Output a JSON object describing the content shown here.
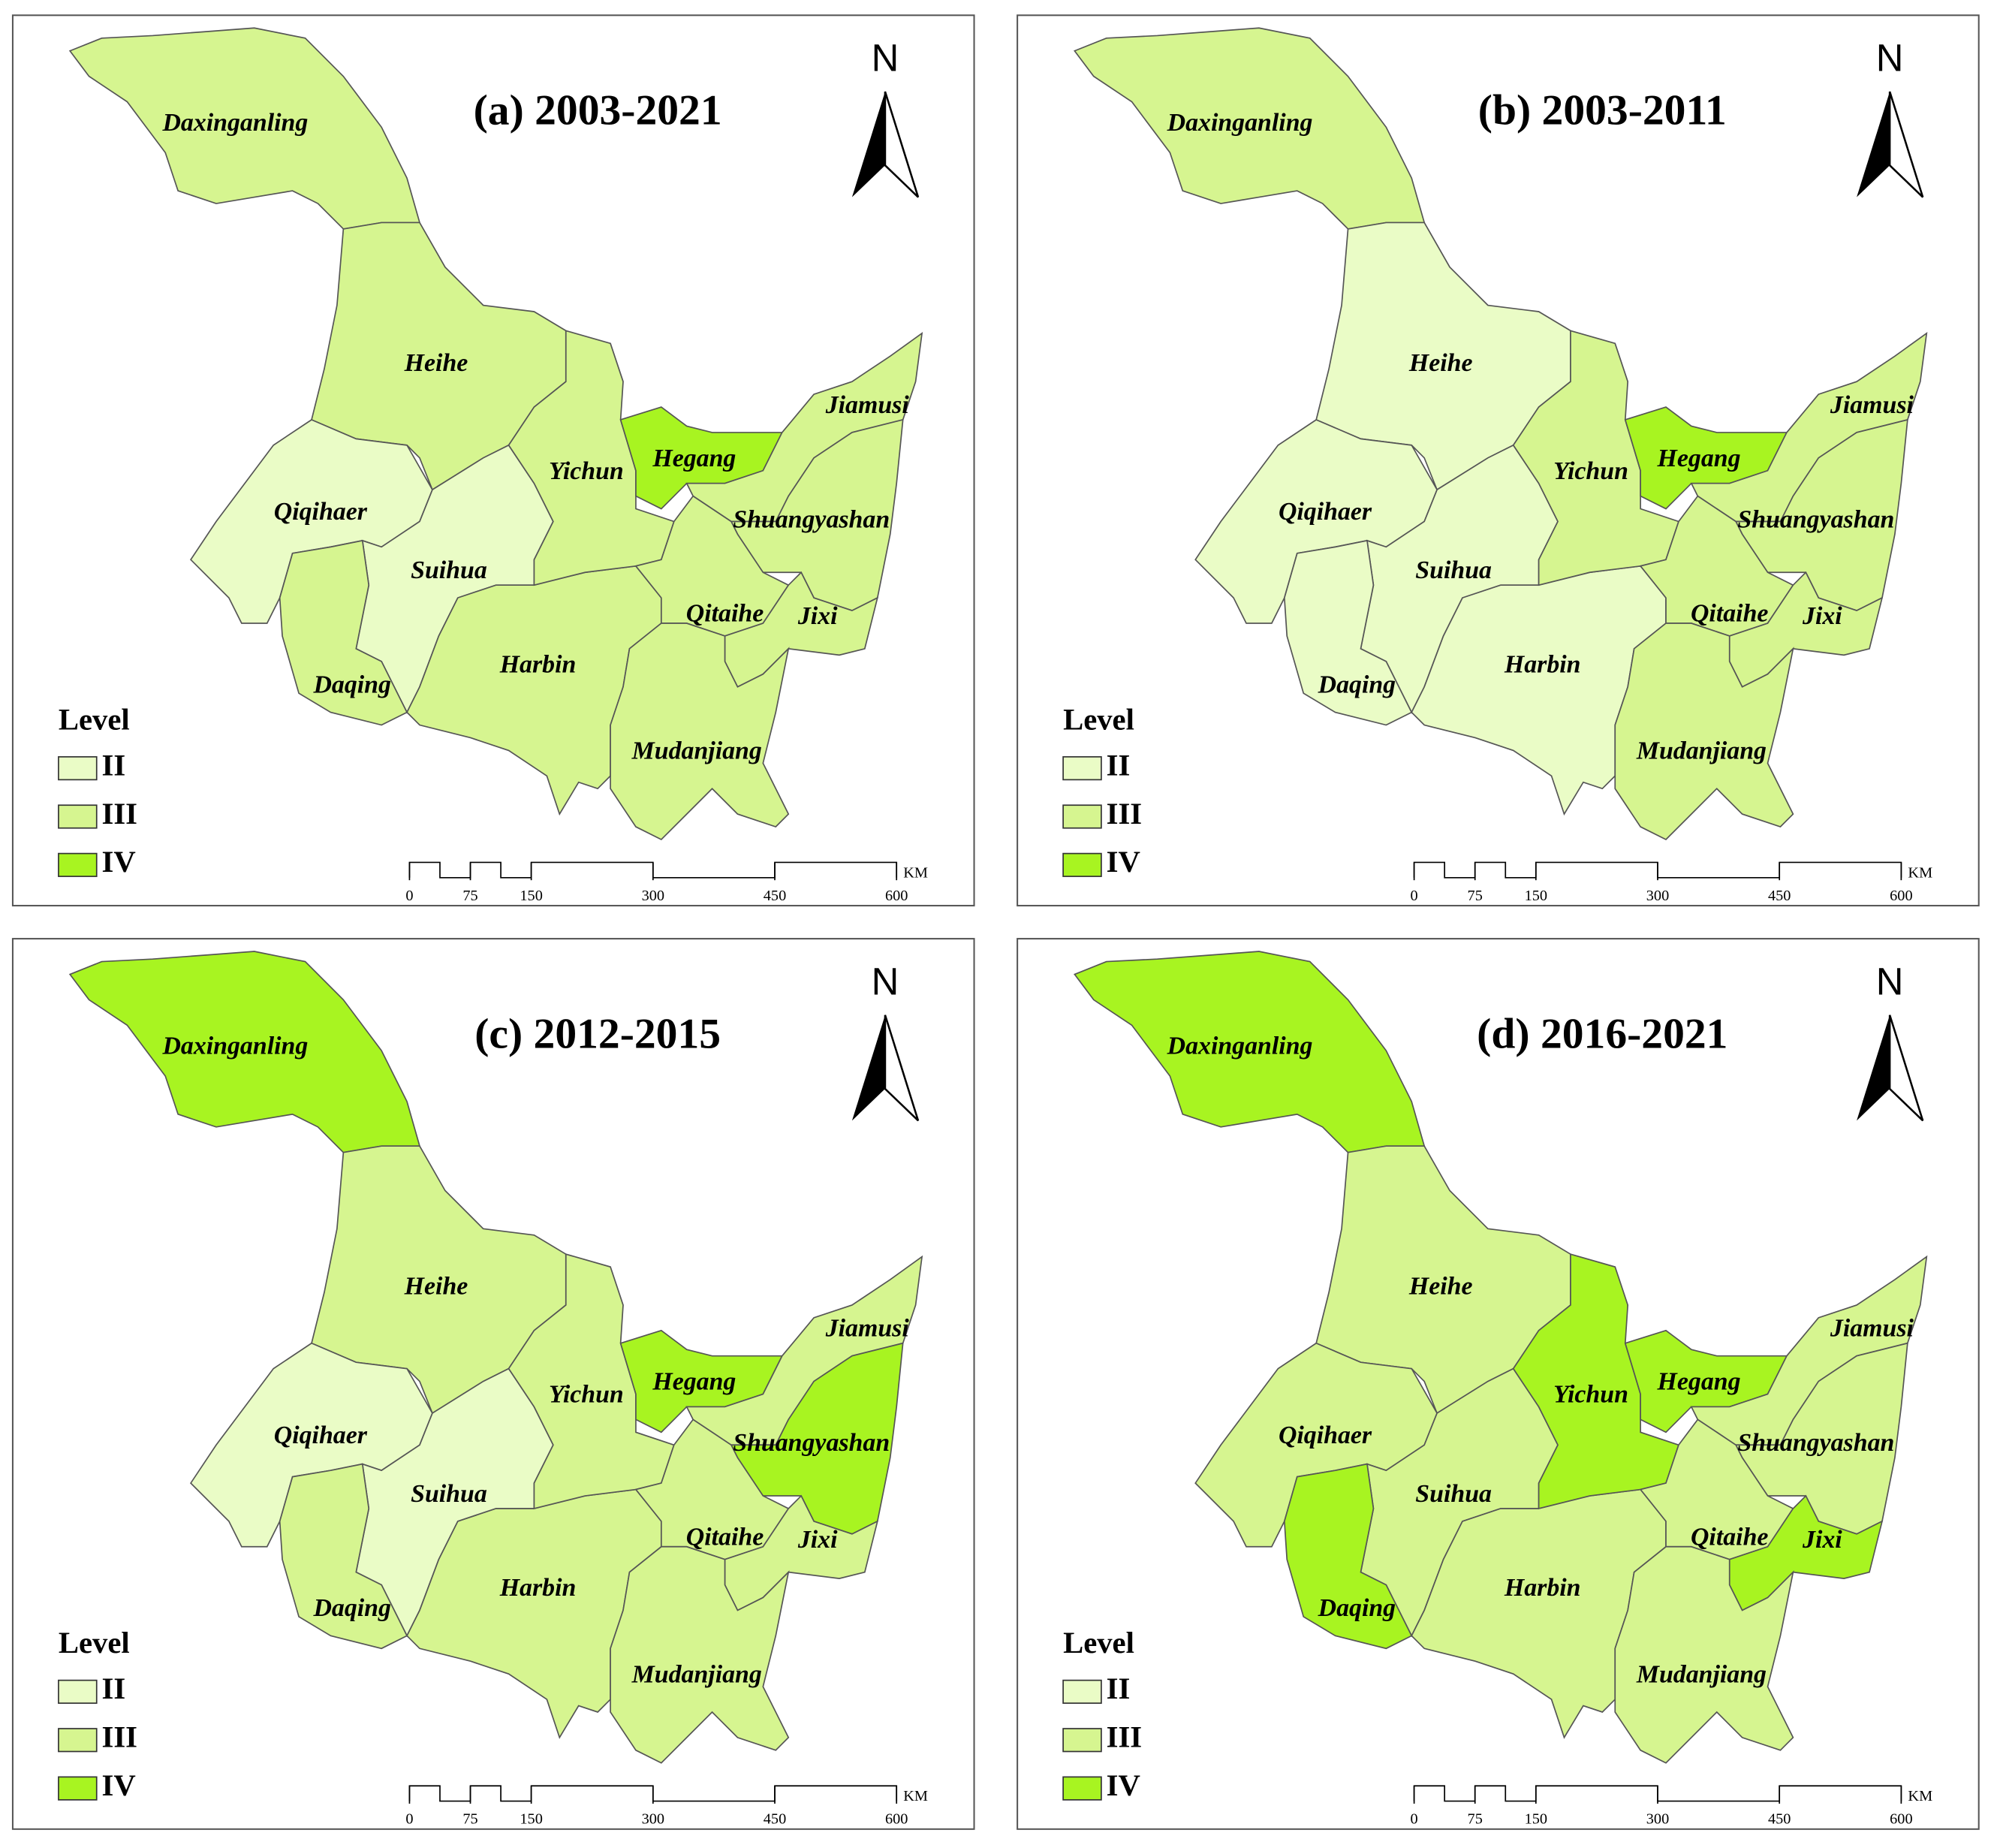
{
  "legend": {
    "title": "Level",
    "items": [
      {
        "label": "II",
        "color": "#eafcc6"
      },
      {
        "label": "III",
        "color": "#d6f590"
      },
      {
        "label": "IV",
        "color": "#a8f421"
      }
    ]
  },
  "scale_bar": {
    "ticks": [
      0,
      75,
      150,
      300,
      450,
      600
    ],
    "unit": "KM"
  },
  "north": "N",
  "panels": [
    {
      "title": "(a) 2003-2021",
      "regions": [
        {
          "name": "Daxinganling",
          "level": "III"
        },
        {
          "name": "Heihe",
          "level": "III"
        },
        {
          "name": "Qiqihaer",
          "level": "II"
        },
        {
          "name": "Suihua",
          "level": "II"
        },
        {
          "name": "Daqing",
          "level": "III"
        },
        {
          "name": "Harbin",
          "level": "III"
        },
        {
          "name": "Yichun",
          "level": "III"
        },
        {
          "name": "Hegang",
          "level": "IV"
        },
        {
          "name": "Jiamusi",
          "level": "III"
        },
        {
          "name": "Shuangyashan",
          "level": "III"
        },
        {
          "name": "Qitaihe",
          "level": "III"
        },
        {
          "name": "Jixi",
          "level": "III"
        },
        {
          "name": "Mudanjiang",
          "level": "III"
        }
      ]
    },
    {
      "title": "(b) 2003-2011",
      "regions": [
        {
          "name": "Daxinganling",
          "level": "III"
        },
        {
          "name": "Heihe",
          "level": "II"
        },
        {
          "name": "Qiqihaer",
          "level": "II"
        },
        {
          "name": "Suihua",
          "level": "II"
        },
        {
          "name": "Daqing",
          "level": "II"
        },
        {
          "name": "Harbin",
          "level": "II"
        },
        {
          "name": "Yichun",
          "level": "III"
        },
        {
          "name": "Hegang",
          "level": "IV"
        },
        {
          "name": "Jiamusi",
          "level": "III"
        },
        {
          "name": "Shuangyashan",
          "level": "III"
        },
        {
          "name": "Qitaihe",
          "level": "III"
        },
        {
          "name": "Jixi",
          "level": "III"
        },
        {
          "name": "Mudanjiang",
          "level": "III"
        }
      ]
    },
    {
      "title": "(c) 2012-2015",
      "regions": [
        {
          "name": "Daxinganling",
          "level": "IV"
        },
        {
          "name": "Heihe",
          "level": "III"
        },
        {
          "name": "Qiqihaer",
          "level": "II"
        },
        {
          "name": "Suihua",
          "level": "II"
        },
        {
          "name": "Daqing",
          "level": "III"
        },
        {
          "name": "Harbin",
          "level": "III"
        },
        {
          "name": "Yichun",
          "level": "III"
        },
        {
          "name": "Hegang",
          "level": "IV"
        },
        {
          "name": "Jiamusi",
          "level": "III"
        },
        {
          "name": "Shuangyashan",
          "level": "IV"
        },
        {
          "name": "Qitaihe",
          "level": "III"
        },
        {
          "name": "Jixi",
          "level": "III"
        },
        {
          "name": "Mudanjiang",
          "level": "III"
        }
      ]
    },
    {
      "title": "(d) 2016-2021",
      "regions": [
        {
          "name": "Daxinganling",
          "level": "IV"
        },
        {
          "name": "Heihe",
          "level": "III"
        },
        {
          "name": "Qiqihaer",
          "level": "III"
        },
        {
          "name": "Suihua",
          "level": "III"
        },
        {
          "name": "Daqing",
          "level": "IV"
        },
        {
          "name": "Harbin",
          "level": "III"
        },
        {
          "name": "Yichun",
          "level": "IV"
        },
        {
          "name": "Hegang",
          "level": "IV"
        },
        {
          "name": "Jiamusi",
          "level": "III"
        },
        {
          "name": "Shuangyashan",
          "level": "III"
        },
        {
          "name": "Qitaihe",
          "level": "III"
        },
        {
          "name": "Jixi",
          "level": "IV"
        },
        {
          "name": "Mudanjiang",
          "level": "III"
        }
      ]
    }
  ]
}
